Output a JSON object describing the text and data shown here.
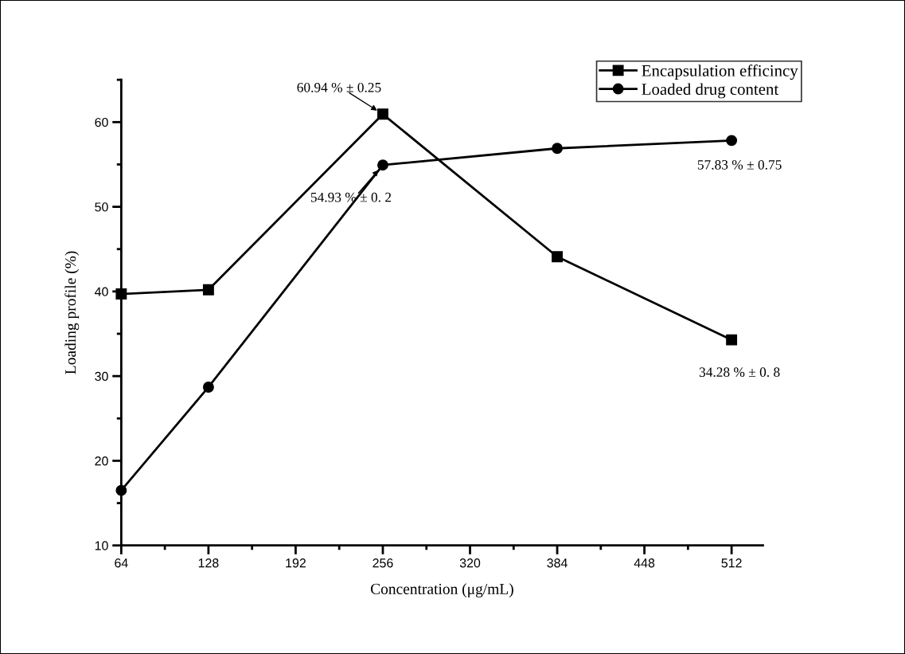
{
  "chart_data": {
    "type": "line",
    "xlabel": "Concentration (μg/mL)",
    "ylabel": "Loading profile (%)",
    "x": [
      64,
      128,
      256,
      384,
      512
    ],
    "series": [
      {
        "name": "Encapsulation efficincy",
        "color": "#000000",
        "marker": "square",
        "values": [
          39.7,
          40.2,
          60.94,
          44.1,
          34.28
        ]
      },
      {
        "name": "Loaded drug content",
        "color": "#000000",
        "marker": "circle",
        "values": [
          16.5,
          28.7,
          54.93,
          56.9,
          57.83
        ]
      }
    ],
    "xlim": [
      64,
      535
    ],
    "xticks": [
      64,
      128,
      192,
      256,
      320,
      384,
      448,
      512
    ],
    "ylim": [
      10,
      65
    ],
    "yticks": [
      10,
      20,
      30,
      40,
      50,
      60
    ],
    "line_style": "solid",
    "grid": false,
    "legend": "top right",
    "annotations": [
      {
        "text": "60.94 % ± 0.25",
        "x": 256,
        "y": 60.94
      },
      {
        "text": "54.93 % ± 0. 2",
        "x": 256,
        "y": 54.93
      },
      "57.83 % ± 0.75",
      "34.28 % ± 0. 8"
    ]
  }
}
